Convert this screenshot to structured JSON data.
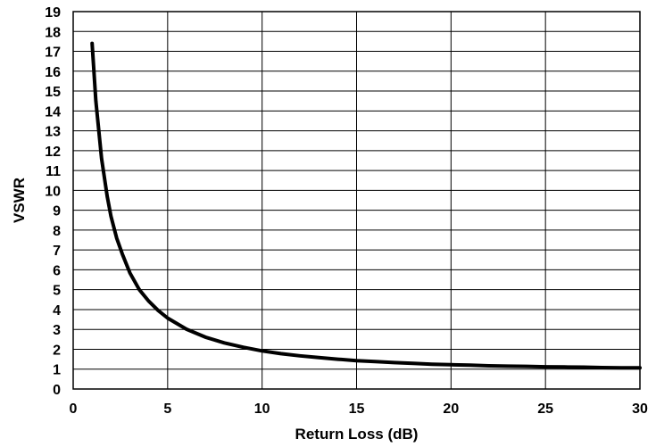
{
  "chart_data": {
    "type": "line",
    "title": "",
    "xlabel": "Return Loss (dB)",
    "ylabel": "VSWR",
    "xlim": [
      0,
      30
    ],
    "ylim": [
      0,
      19
    ],
    "x_ticks": [
      0,
      5,
      10,
      15,
      20,
      25,
      30
    ],
    "y_ticks": [
      0,
      1,
      2,
      3,
      4,
      5,
      6,
      7,
      8,
      9,
      10,
      11,
      12,
      13,
      14,
      15,
      16,
      17,
      18,
      19
    ],
    "grid": true,
    "legend": "none",
    "series": [
      {
        "color": "#000000",
        "x": [
          1,
          1.2,
          1.5,
          1.8,
          2,
          2.3,
          2.6,
          3,
          3.5,
          4,
          4.5,
          5,
          6,
          7,
          8,
          9,
          10,
          11,
          12,
          13,
          14,
          15,
          16,
          17,
          18,
          19,
          20,
          21,
          22,
          23,
          24,
          25,
          26,
          27,
          28,
          29,
          30
        ],
        "y": [
          17.4,
          14.5,
          11.6,
          9.7,
          8.7,
          7.6,
          6.8,
          5.85,
          5.0,
          4.42,
          3.95,
          3.57,
          3.01,
          2.61,
          2.32,
          2.1,
          1.92,
          1.78,
          1.67,
          1.58,
          1.5,
          1.43,
          1.38,
          1.33,
          1.29,
          1.25,
          1.22,
          1.2,
          1.17,
          1.15,
          1.14,
          1.12,
          1.11,
          1.1,
          1.08,
          1.07,
          1.07
        ]
      }
    ]
  }
}
